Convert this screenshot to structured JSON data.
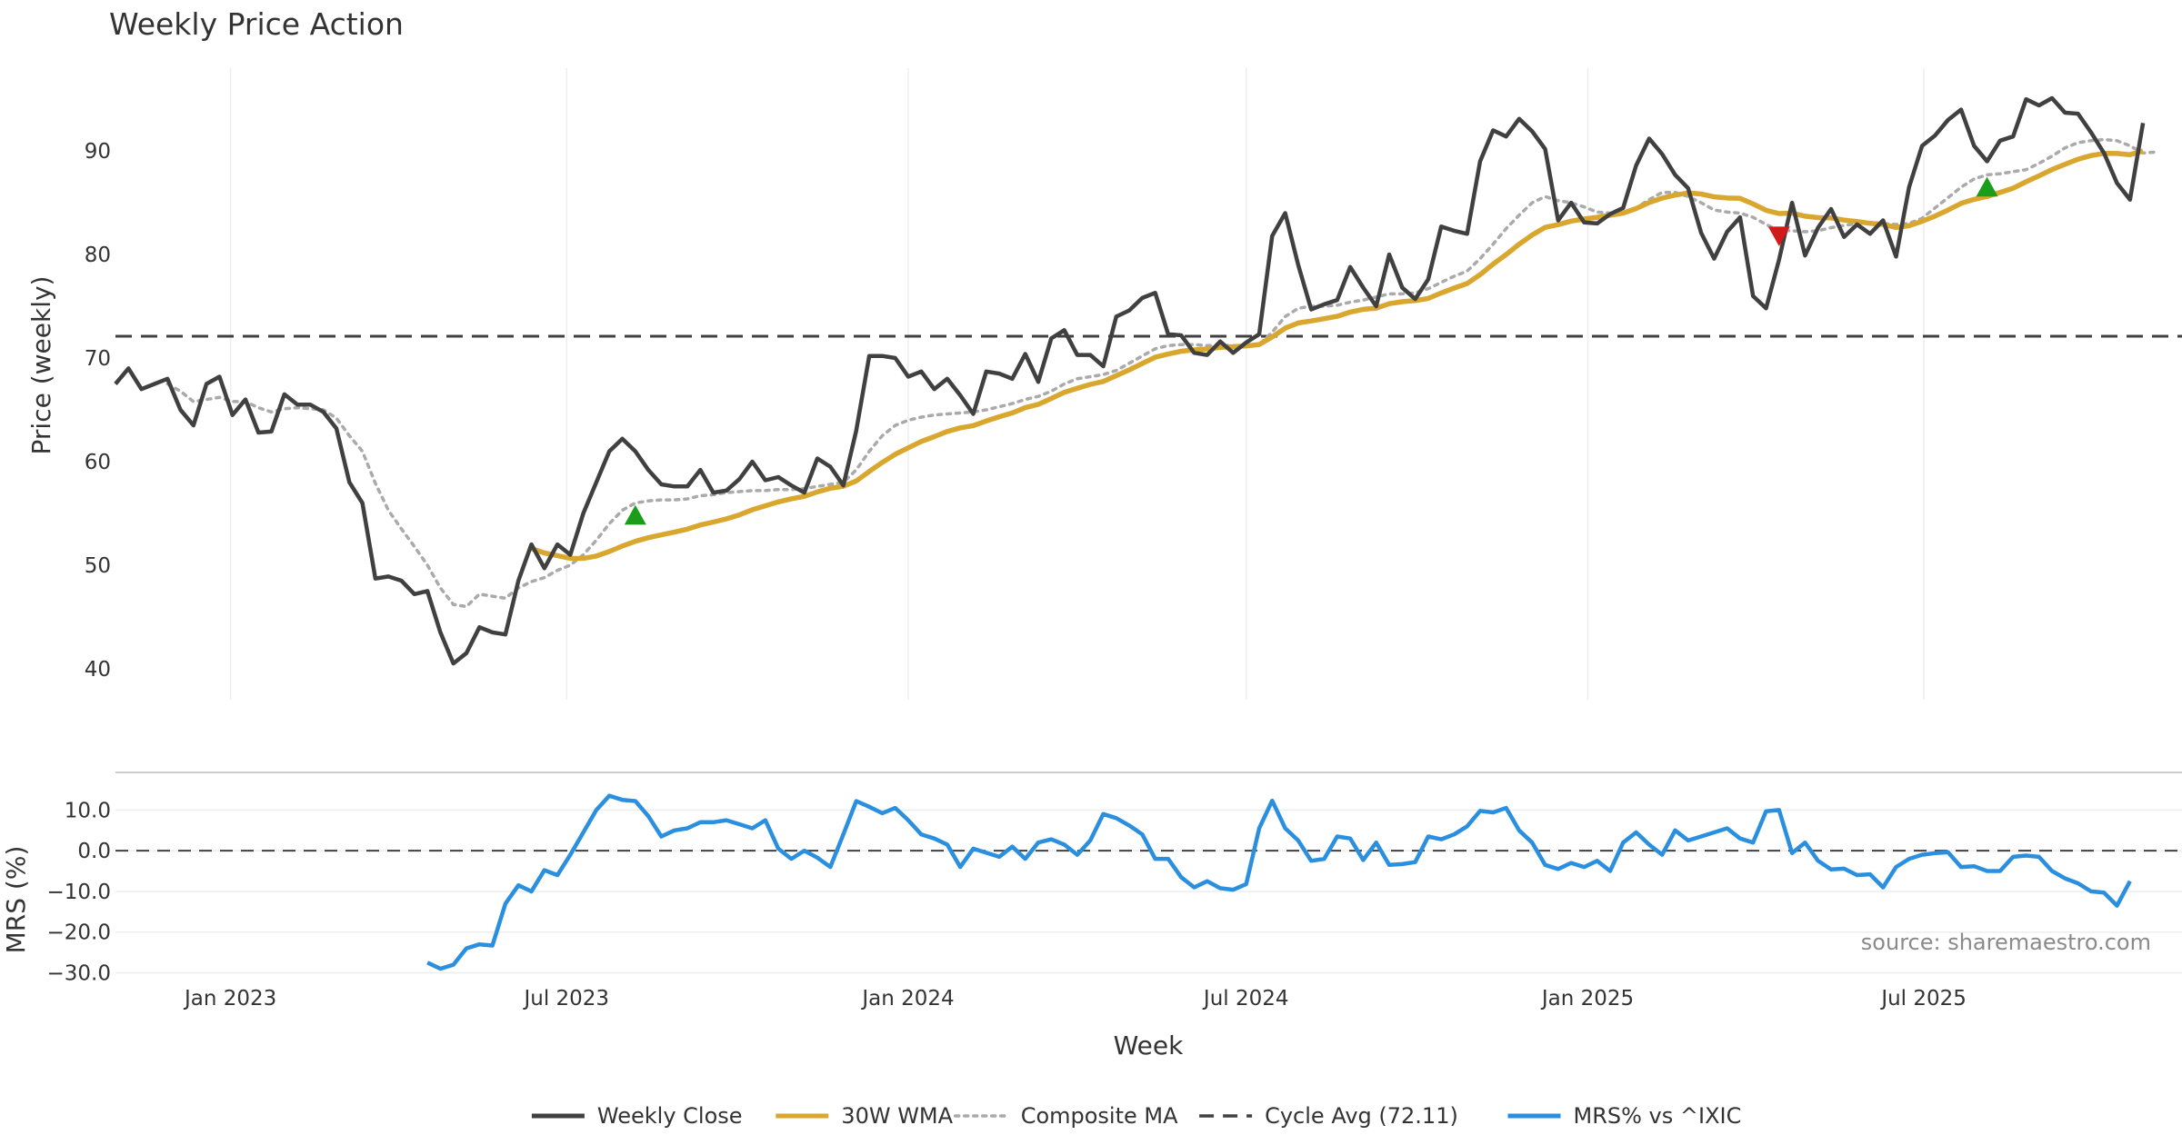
{
  "chart_data": [
    {
      "type": "line",
      "title": "Weekly Price Action",
      "xlabel": "",
      "ylabel": "Price (weekly)",
      "ylim": [
        37,
        98
      ],
      "yticks": [
        "40",
        "50",
        "60",
        "70",
        "80",
        "90"
      ],
      "grid": true,
      "x_start": "2022-10-31",
      "x_end": "2025-11-17",
      "x_interval_days": 7,
      "series": [
        {
          "name": "Weekly Close",
          "color": "#404040",
          "values": [
            67.5,
            69,
            67,
            67.5,
            68,
            65,
            63.5,
            67.5,
            68.2,
            64.5,
            66,
            62.8,
            62.9,
            66.5,
            65.5,
            65.5,
            64.8,
            63.2,
            58,
            56,
            48.7,
            48.9,
            48.5,
            47.2,
            47.5,
            43.5,
            40.5,
            41.5,
            44,
            43.5,
            43.3,
            48.5,
            52,
            49.7,
            52,
            51,
            55,
            58,
            61,
            62.2,
            61,
            59.2,
            57.8,
            57.6,
            57.6,
            59.2,
            57,
            57.2,
            58.3,
            60,
            58.2,
            58.5,
            57.7,
            57,
            60.3,
            59.5,
            57.7,
            63,
            70.2,
            70.2,
            70,
            68.2,
            68.7,
            67,
            68,
            66.4,
            64.6,
            68.7,
            68.5,
            68,
            70.4,
            67.7,
            71.9,
            72.7,
            70.3,
            70.3,
            69.2,
            74,
            74.6,
            75.8,
            76.3,
            72.3,
            72.2,
            70.5,
            70.3,
            71.6,
            70.5,
            71.5,
            72.3,
            81.8,
            84,
            79,
            74.7,
            75.2,
            75.6,
            78.8,
            76.8,
            75,
            80,
            76.8,
            75.7,
            77.6,
            82.7,
            82.3,
            82,
            89,
            92,
            91.4,
            93.1,
            91.9,
            90.2,
            83.3,
            85,
            83.1,
            83,
            83.9,
            84.5,
            88.6,
            91.2,
            89.7,
            87.7,
            86.4,
            82.1,
            79.6,
            82.2,
            83.6,
            76,
            74.8,
            79.5,
            85,
            79.9,
            82.6,
            84.4,
            81.7,
            82.9,
            82,
            83.3,
            79.8,
            86.5,
            90.5,
            91.5,
            93,
            94,
            90.5,
            89,
            91,
            91.4,
            95,
            94.4,
            95.1,
            93.7,
            93.6,
            91.8,
            89.8,
            86.9,
            85.3,
            92.7
          ]
        },
        {
          "name": "30W WMA",
          "color": "#d9a62e",
          "values": [
            null,
            null,
            null,
            null,
            null,
            null,
            null,
            null,
            null,
            null,
            null,
            null,
            null,
            null,
            null,
            null,
            null,
            null,
            null,
            null,
            null,
            null,
            null,
            null,
            null,
            null,
            null,
            null,
            null,
            null,
            null,
            null,
            null,
            null,
            null,
            null,
            null,
            null,
            null,
            null,
            null,
            null,
            null,
            null,
            null,
            null,
            null,
            null,
            null,
            null,
            null,
            null,
            null,
            null,
            null,
            null,
            null,
            null,
            null,
            null,
            null,
            null,
            null,
            null,
            null,
            null,
            null,
            null,
            null,
            null,
            null,
            null,
            null,
            null,
            null,
            null,
            null,
            null,
            null,
            null,
            null,
            null,
            null,
            null,
            null,
            null,
            null,
            null,
            null,
            null,
            null,
            null,
            null,
            null,
            null,
            null,
            null,
            null,
            null,
            null,
            null,
            null,
            null,
            null,
            null,
            null,
            null,
            null,
            null,
            null,
            null,
            null,
            null,
            null,
            null,
            null,
            null,
            null,
            null,
            null,
            null,
            null,
            null,
            null,
            null,
            null,
            null,
            null,
            null,
            null,
            null,
            null,
            null,
            null,
            null,
            null,
            null,
            null,
            null,
            null,
            null,
            null,
            null,
            null,
            null,
            null,
            null,
            null,
            null,
            null,
            null,
            null,
            null,
            null,
            null,
            null,
            null,
            null,
            null,
            null
          ]
        },
        {
          "name": "Composite MA",
          "color": "#aaaaaa",
          "values": [
            null,
            null,
            null,
            null,
            67.5,
            66.8,
            65.8,
            66,
            66.2,
            65.8,
            65.8,
            65.2,
            64.8,
            65.1,
            65.2,
            65.1,
            65,
            64.2,
            62.5,
            61,
            57.9,
            55.3,
            53.5,
            51.8,
            50,
            47.8,
            46.2,
            46,
            47.2,
            47,
            46.8,
            47.8,
            48.4,
            48.8,
            49.5,
            50,
            51,
            52.4,
            54,
            55.3,
            56,
            56.2,
            56.3,
            56.3,
            56.4,
            56.7,
            56.8,
            57,
            57.1,
            57.2,
            57.2,
            57.3,
            57.3,
            57.4,
            57.6,
            57.8,
            58,
            59.2,
            61,
            62.5,
            63.5,
            64,
            64.3,
            64.5,
            64.6,
            64.7,
            64.8,
            65,
            65.3,
            65.6,
            66,
            66.3,
            66.8,
            67.5,
            68,
            68.2,
            68.4,
            68.8,
            69.5,
            70.2,
            70.9,
            71.2,
            71.3,
            71.3,
            71.2,
            71.2,
            71.2,
            71.2,
            71.3,
            72.5,
            74,
            74.8,
            75,
            75,
            75.1,
            75.4,
            75.6,
            75.9,
            76.2,
            76.2,
            76.3,
            76.7,
            77.3,
            77.9,
            78.4,
            79.6,
            81,
            82.5,
            83.8,
            85,
            85.6,
            85.2,
            85,
            84.6,
            84.1,
            84,
            84.1,
            84.5,
            85.3,
            86,
            86,
            85.6,
            85,
            84.3,
            84.1,
            84,
            83.6,
            82.9,
            82.3,
            82.3,
            82.2,
            82.3,
            82.6,
            82.8,
            83,
            83.1,
            83,
            82.9,
            83,
            83.5,
            84.5,
            85.5,
            86.5,
            87.3,
            87.7,
            87.8,
            88,
            88.2,
            88.8,
            89.5,
            90.3,
            90.8,
            91,
            91.1,
            91,
            90.5,
            89.8,
            89.9
          ]
        },
        {
          "name": "Cycle Avg (72.11)",
          "color": "#404040",
          "value": 72.11
        }
      ],
      "markers": [
        {
          "kind": "buy",
          "week_index": 40,
          "y": 54.8,
          "color": "#1a9e1a"
        },
        {
          "kind": "sell",
          "week_index": 128,
          "y": 81.8,
          "color": "#d11a1a"
        },
        {
          "kind": "buy",
          "week_index": 144,
          "y": 86.5,
          "color": "#1a9e1a"
        }
      ]
    },
    {
      "type": "line",
      "title": "",
      "xlabel": "Week",
      "ylabel": "MRS (%)",
      "ylim": [
        -31,
        17
      ],
      "yticks": [
        "10.0",
        "0.0",
        "−10.0",
        "−20.0",
        "−30.0"
      ],
      "xticks": [
        "Jan 2023",
        "Jul 2023",
        "Jan 2024",
        "Jul 2024",
        "Jan 2025",
        "Jul 2025"
      ],
      "xtick_dates": [
        "2023-01-01",
        "2023-07-01",
        "2024-01-01",
        "2024-07-01",
        "2025-01-01",
        "2025-07-01"
      ],
      "zero_line": 0,
      "series": [
        {
          "name": "MRS% vs ^IXIC",
          "color": "#2b8fe0",
          "values": [
            null,
            null,
            null,
            null,
            null,
            null,
            null,
            null,
            null,
            null,
            null,
            null,
            null,
            null,
            null,
            null,
            null,
            null,
            null,
            null,
            null,
            null,
            null,
            null,
            -27.5,
            -29,
            -28,
            -24,
            -23,
            -23.3,
            -13,
            -8.5,
            -10,
            -4.8,
            -6,
            -1,
            4.5,
            10,
            13.5,
            12.5,
            12.2,
            8.5,
            3.5,
            5,
            5.5,
            7,
            7,
            7.5,
            6.5,
            5.5,
            7.5,
            0.5,
            -2,
            0,
            -1.7,
            -4,
            4,
            12.2,
            10.8,
            9.2,
            10.5,
            7.5,
            4,
            3,
            1.5,
            -4,
            0.5,
            -0.5,
            -1.5,
            1,
            -2,
            2,
            2.8,
            1.5,
            -1,
            2.5,
            9,
            8,
            6.2,
            4,
            -2,
            -2,
            -6.5,
            -9,
            -7.5,
            -9.2,
            -9.6,
            -8.2,
            5.5,
            12.3,
            5.5,
            2.5,
            -2.5,
            -2,
            3.5,
            3,
            -2.3,
            2,
            -3.5,
            -3.3,
            -2.8,
            3.5,
            2.8,
            4,
            6,
            9.8,
            9.4,
            10.5,
            5,
            2,
            -3.5,
            -4.5,
            -3,
            -4,
            -2.5,
            -5,
            2,
            4.5,
            1.5,
            -1,
            5,
            2.5,
            3.5,
            4.5,
            5.5,
            3,
            2,
            9.7,
            10,
            -0.6,
            2,
            -2.5,
            -4.6,
            -4.4,
            -6,
            -5.8,
            -9,
            -4,
            -2,
            -1,
            -0.6,
            -0.4,
            -4,
            -3.8,
            -5,
            -5,
            -1.5,
            -1.2,
            -1.5,
            -5,
            -6.8,
            -8,
            -10,
            -10.3,
            -13.5,
            -7.5
          ]
        }
      ],
      "annotation": "source: sharemaestro.com"
    }
  ],
  "legend": {
    "placement": "bottom-center",
    "entries": [
      {
        "label": "Weekly Close",
        "color": "#404040",
        "style": "solid"
      },
      {
        "label": "30W WMA",
        "color": "#d9a62e",
        "style": "solid"
      },
      {
        "label": "Composite MA",
        "color": "#aaaaaa",
        "style": "dotted"
      },
      {
        "label": "Cycle Avg (72.11)",
        "color": "#404040",
        "style": "dashed"
      },
      {
        "label": "MRS% vs ^IXIC",
        "color": "#2b8fe0",
        "style": "solid"
      }
    ]
  }
}
